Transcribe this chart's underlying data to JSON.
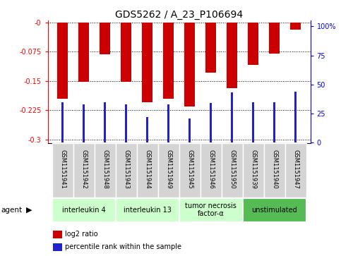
{
  "title": "GDS5262 / A_23_P106694",
  "samples": [
    "GSM1151941",
    "GSM1151942",
    "GSM1151948",
    "GSM1151943",
    "GSM1151944",
    "GSM1151949",
    "GSM1151945",
    "GSM1151946",
    "GSM1151950",
    "GSM1151939",
    "GSM1151940",
    "GSM1151947"
  ],
  "log2_ratio": [
    -0.195,
    -0.152,
    -0.082,
    -0.152,
    -0.205,
    -0.195,
    -0.215,
    -0.128,
    -0.168,
    -0.108,
    -0.079,
    -0.018
  ],
  "percentile_rank": [
    35,
    33,
    35,
    33,
    22,
    33,
    21,
    34,
    43,
    35,
    35,
    44
  ],
  "groups": [
    {
      "label": "interleukin 4",
      "indices": [
        0,
        1,
        2
      ],
      "color": "#ccffcc"
    },
    {
      "label": "interleukin 13",
      "indices": [
        3,
        4,
        5
      ],
      "color": "#ccffcc"
    },
    {
      "label": "tumor necrosis\nfactor-α",
      "indices": [
        6,
        7,
        8
      ],
      "color": "#ccffcc"
    },
    {
      "label": "unstimulated",
      "indices": [
        9,
        10,
        11
      ],
      "color": "#55bb55"
    }
  ],
  "ylim_left": [
    -0.31,
    0.005
  ],
  "ylim_right": [
    -0.5,
    105
  ],
  "yticks_left": [
    -0.3,
    -0.225,
    -0.15,
    -0.075,
    0
  ],
  "ytick_labels_left": [
    "-0.3",
    "-0.225",
    "-0.15",
    "-0.075",
    "-0"
  ],
  "yticks_right": [
    0,
    25,
    50,
    75,
    100
  ],
  "ytick_labels_right": [
    "0",
    "25",
    "50",
    "75",
    "100%"
  ],
  "bar_color_red": "#cc0000",
  "bar_color_blue": "#2222cc",
  "bar_width": 0.5,
  "blue_bar_width": 0.12,
  "background_plot": "#ffffff",
  "background_fig": "#ffffff",
  "grey_bg": "#d4d4d4",
  "title_fontsize": 10,
  "sample_fontsize": 6,
  "group_fontsize": 7,
  "legend_fontsize": 7
}
